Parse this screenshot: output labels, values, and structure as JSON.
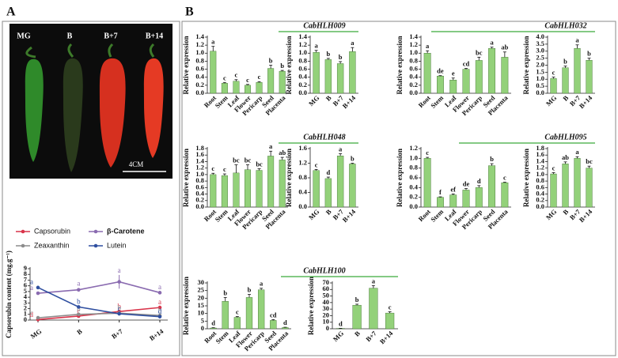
{
  "panels": [
    "A",
    "B"
  ],
  "photo": {
    "labels": [
      "MG",
      "B",
      "B+7",
      "B+14"
    ],
    "scale": "4CM"
  },
  "chart_data": [
    {
      "type": "line",
      "ylabel": "Capsorubin content (mg.g⁻¹)",
      "categories": [
        "MG",
        "B",
        "B+7",
        "B+14"
      ],
      "ylim": [
        0,
        9
      ],
      "yticks": [
        0,
        1,
        2,
        3,
        4,
        5,
        6,
        7,
        8,
        9
      ],
      "series": [
        {
          "name": "Capsorubin",
          "color": "#d9344a",
          "values": [
            0.1,
            0.7,
            1.5,
            2.2
          ],
          "errors": [
            0.05,
            0.1,
            0.1,
            0.15
          ],
          "letters": [
            "d",
            "c",
            "b",
            "a"
          ]
        },
        {
          "name": "β-Carotene",
          "color": "#8a6bb0",
          "values": [
            4.7,
            5.3,
            6.7,
            4.8
          ],
          "errors": [
            0.15,
            0.3,
            1.2,
            0.2
          ],
          "letters": [
            "a",
            "a",
            "a",
            "a"
          ]
        },
        {
          "name": "Zeaxanthin",
          "color": "#8c8c8c",
          "values": [
            0.4,
            1.0,
            1.2,
            0.8
          ],
          "errors": [
            0.05,
            0.1,
            0.1,
            0.1
          ],
          "letters": [
            "c",
            "b",
            "b",
            "b"
          ]
        },
        {
          "name": "Lutein",
          "color": "#2f4fa0",
          "values": [
            5.7,
            2.3,
            1.1,
            0.6
          ],
          "errors": [
            0.2,
            0.15,
            0.1,
            0.1
          ],
          "letters": [
            "a",
            "b",
            "c",
            "d"
          ]
        }
      ]
    },
    {
      "type": "bar",
      "ylabel": "Relative expression",
      "categories": [
        "Root",
        "Stem",
        "Leaf",
        "Flower",
        "Pericarp",
        "Seed",
        "Placenta"
      ],
      "color": "#93d17a",
      "values": [
        1.05,
        0.25,
        0.3,
        0.2,
        0.27,
        0.62,
        0.55
      ],
      "errors": [
        0.12,
        0.02,
        0.04,
        0.02,
        0.02,
        0.08,
        0.02
      ],
      "letters": [
        "a",
        "c",
        "c",
        "c",
        "c",
        "b",
        "b"
      ],
      "ylim": [
        0,
        1.4
      ],
      "yticks": [
        {
          "value": 0,
          "label": "0.0"
        },
        0.2,
        0.4,
        0.6,
        0.8,
        {
          "value": 1,
          "label": "1.0"
        },
        1.2,
        1.4
      ]
    },
    {
      "type": "bar",
      "title": "CabHLH009",
      "ylabel": "Relative expression",
      "categories": [
        "MG",
        "B",
        "B+7",
        "B+14"
      ],
      "color": "#93d17a",
      "values": [
        1.02,
        0.84,
        0.74,
        1.04
      ],
      "errors": [
        0.05,
        0.03,
        0.05,
        0.1
      ],
      "letters": [
        "a",
        "b",
        "b",
        "a"
      ],
      "ylim": [
        0,
        1.4
      ],
      "yticks": [
        {
          "value": 0,
          "label": "0.0"
        },
        0.2,
        0.4,
        0.6,
        0.8,
        {
          "value": 1,
          "label": "1.0"
        },
        1.2,
        1.4
      ]
    },
    {
      "type": "bar",
      "ylabel": "Relative expression",
      "categories": [
        "Root",
        "Stem",
        "Leaf",
        "Flower",
        "Pericarp",
        "Seed",
        "Placenta"
      ],
      "color": "#93d17a",
      "values": [
        1.0,
        0.43,
        0.33,
        0.6,
        0.82,
        1.12,
        0.9
      ],
      "errors": [
        0.06,
        0.01,
        0.05,
        0.02,
        0.08,
        0.03,
        0.13
      ],
      "letters": [
        "a",
        "de",
        "e",
        "cd",
        "bc",
        "a",
        "ab"
      ],
      "ylim": [
        0,
        1.4
      ],
      "yticks": [
        {
          "value": 0,
          "label": "0.0"
        },
        0.2,
        0.4,
        0.6,
        0.8,
        {
          "value": 1,
          "label": "1.0"
        },
        1.2,
        1.4
      ]
    },
    {
      "type": "bar",
      "title": "CabHLH032",
      "ylabel": "Relative expression",
      "categories": [
        "MG",
        "B",
        "B+7",
        "B+14"
      ],
      "color": "#93d17a",
      "values": [
        1.05,
        1.82,
        3.2,
        2.35
      ],
      "errors": [
        0.1,
        0.12,
        0.25,
        0.15
      ],
      "letters": [
        "c",
        "b",
        "a",
        "b"
      ],
      "ylim": [
        0,
        4
      ],
      "yticks": [
        {
          "value": 0,
          "label": "0.0"
        },
        0.5,
        {
          "value": 1,
          "label": "1.0"
        },
        1.5,
        {
          "value": 2,
          "label": "2.0"
        },
        2.5,
        {
          "value": 3,
          "label": "3.0"
        },
        3.5,
        {
          "value": 4,
          "label": "4.0"
        }
      ]
    },
    {
      "type": "bar",
      "ylabel": "Relative expression",
      "categories": [
        "Root",
        "Stem",
        "Leaf",
        "Flower",
        "Pericarp",
        "Seed",
        "Placenta"
      ],
      "color": "#93d17a",
      "values": [
        1.0,
        0.97,
        1.05,
        1.15,
        1.13,
        1.57,
        1.45
      ],
      "errors": [
        0.04,
        0.05,
        0.25,
        0.15,
        0.05,
        0.15,
        0.08
      ],
      "letters": [
        "c",
        "c",
        "bc",
        "bc",
        "bc",
        "a",
        "ab"
      ],
      "ylim": [
        0,
        1.8
      ],
      "yticks": [
        {
          "value": 0,
          "label": "0.0"
        },
        0.2,
        0.4,
        0.6,
        0.8,
        {
          "value": 1,
          "label": "1.0"
        },
        1.2,
        1.4,
        1.6,
        1.8
      ]
    },
    {
      "type": "bar",
      "title": "CabHLH048",
      "ylabel": "Relative expression",
      "categories": [
        "MG",
        "B",
        "B+7",
        "B+14"
      ],
      "color": "#93d17a",
      "values": [
        1.0,
        0.78,
        1.4,
        1.18
      ],
      "errors": [
        0.03,
        0.04,
        0.06,
        0.02
      ],
      "letters": [
        "c",
        "d",
        "a",
        "b"
      ],
      "ylim": [
        0,
        1.6
      ],
      "yticks": [
        {
          "value": 0,
          "label": "0.0"
        },
        0.4,
        0.8,
        1.2,
        1.6
      ]
    },
    {
      "type": "bar",
      "ylabel": "Relative expression",
      "categories": [
        "Root",
        "Stem",
        "Leaf",
        "Flower",
        "Pericarp",
        "Seed",
        "Placenta"
      ],
      "color": "#93d17a",
      "values": [
        1.0,
        0.2,
        0.25,
        0.35,
        0.4,
        0.85,
        0.5
      ],
      "errors": [
        0.02,
        0.01,
        0.02,
        0.03,
        0.04,
        0.04,
        0.01
      ],
      "letters": [
        "c",
        "f",
        "ef",
        "de",
        "d",
        "b",
        "c"
      ],
      "ylim": [
        0,
        1.2
      ],
      "yticks": [
        {
          "value": 0,
          "label": "0.0"
        },
        0.2,
        0.4,
        0.6,
        0.8,
        {
          "value": 1,
          "label": "1.0"
        },
        1.2
      ]
    },
    {
      "type": "bar",
      "title": "CabHLH095",
      "ylabel": "Relative expression",
      "categories": [
        "MG",
        "B",
        "B+7",
        "B+14"
      ],
      "color": "#93d17a",
      "values": [
        1.02,
        1.33,
        1.5,
        1.2
      ],
      "errors": [
        0.04,
        0.06,
        0.05,
        0.06
      ],
      "letters": [
        "c",
        "ab",
        "a",
        "bc"
      ],
      "ylim": [
        0,
        1.8
      ],
      "yticks": [
        {
          "value": 0,
          "label": "0.0"
        },
        0.2,
        0.4,
        0.6,
        0.8,
        {
          "value": 1,
          "label": "1.0"
        },
        1.2,
        1.4,
        1.6,
        1.8
      ]
    },
    {
      "type": "bar",
      "ylabel": "Relative expression",
      "categories": [
        "Root",
        "Stem",
        "Leaf",
        "Flower",
        "Pericarp",
        "Seed",
        "Placenta"
      ],
      "color": "#93d17a",
      "values": [
        0.5,
        18,
        7.5,
        20.5,
        25.5,
        5.5,
        0.8
      ],
      "errors": [
        0.2,
        2.5,
        0.5,
        2,
        1,
        0.5,
        0.2
      ],
      "letters": [
        "d",
        "b",
        "c",
        "b",
        "a",
        "cd",
        "d"
      ],
      "ylim": [
        0,
        30
      ],
      "yticks": [
        0,
        5,
        10,
        15,
        20,
        25,
        30
      ]
    },
    {
      "type": "bar",
      "title": "CabHLH100",
      "ylabel": "Relative expression",
      "categories": [
        "MG",
        "B",
        "B+7",
        "B+14"
      ],
      "color": "#93d17a",
      "values": [
        0.5,
        36,
        62,
        24
      ],
      "errors": [
        0.2,
        1.5,
        4,
        2
      ],
      "letters": [
        "d",
        "b",
        "a",
        "c"
      ],
      "ylim": [
        0,
        70
      ],
      "yticks": [
        0,
        10,
        20,
        30,
        40,
        50,
        60,
        70
      ]
    }
  ]
}
